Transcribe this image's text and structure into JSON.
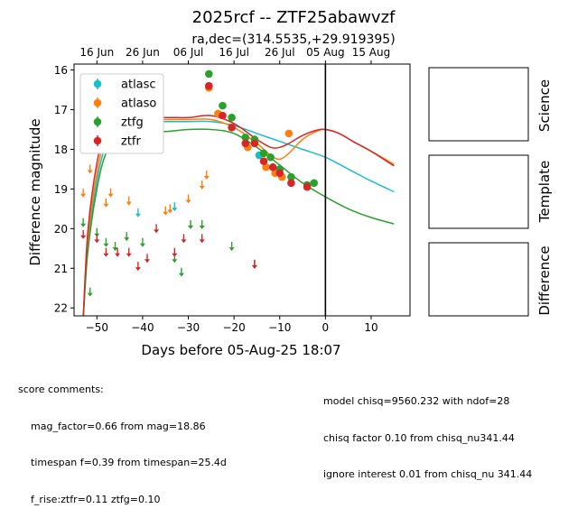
{
  "chart_data": {
    "type": "scatter",
    "title": "2025rcf -- ZTF25abawvzf",
    "subtitle": "ra,dec=(314.5535,+29.919395)",
    "xlabel": "Days before 05-Aug-25 18:07",
    "ylabel": "Difference magnitude",
    "xlim": [
      -55,
      18.5
    ],
    "ylim": [
      22.2,
      15.85
    ],
    "y_inverted": true,
    "x_ticks": [
      "−50",
      "−40",
      "−30",
      "−20",
      "−10",
      "0",
      "10"
    ],
    "x_tick_values": [
      -50,
      -40,
      -30,
      -20,
      -10,
      0,
      10
    ],
    "y_ticks": [
      "16",
      "17",
      "18",
      "19",
      "20",
      "21",
      "22"
    ],
    "y_tick_values": [
      16,
      17,
      18,
      19,
      20,
      21,
      22
    ],
    "top_axis_ticks": [
      "16 Jun",
      "26 Jun",
      "06 Jul",
      "16 Jul",
      "26 Jul",
      "05 Aug",
      "15 Aug"
    ],
    "top_axis_tick_values": [
      -50,
      -40,
      -30,
      -20,
      -10,
      0,
      10
    ],
    "vertical_line_x": 0,
    "legend_position": "upper-left",
    "series": [
      {
        "name": "atlasc",
        "color": "#17becf",
        "detections": [
          [
            -14.5,
            18.15
          ]
        ],
        "upper_limits": [
          [
            -41,
            19.6
          ],
          [
            -33,
            19.45
          ]
        ],
        "model": [
          [
            -53,
            22.2
          ],
          [
            -52,
            20.5
          ],
          [
            -50,
            18.8
          ],
          [
            -48,
            17.9
          ],
          [
            -45,
            17.45
          ],
          [
            -40,
            17.3
          ],
          [
            -35,
            17.3
          ],
          [
            -30,
            17.3
          ],
          [
            -25,
            17.3
          ],
          [
            -20,
            17.4
          ],
          [
            -15,
            17.6
          ],
          [
            -10,
            17.8
          ],
          [
            -5,
            18.0
          ],
          [
            0,
            18.2
          ],
          [
            5,
            18.5
          ],
          [
            10,
            18.8
          ],
          [
            15,
            19.07
          ]
        ]
      },
      {
        "name": "atlaso",
        "color": "#ff7f0e",
        "detections": [
          [
            -25.5,
            16.45
          ],
          [
            -23.5,
            17.1
          ],
          [
            -17,
            17.95
          ],
          [
            -13,
            18.45
          ],
          [
            -11,
            18.6
          ],
          [
            -9.5,
            18.7
          ],
          [
            -8,
            17.6
          ]
        ],
        "upper_limits": [
          [
            -53,
            19.1
          ],
          [
            -51.5,
            18.5
          ],
          [
            -48,
            19.35
          ],
          [
            -47,
            19.1
          ],
          [
            -43,
            19.3
          ],
          [
            -35,
            19.55
          ],
          [
            -34,
            19.5
          ],
          [
            -30,
            19.25
          ],
          [
            -27,
            18.9
          ],
          [
            -26,
            18.65
          ]
        ],
        "model": [
          [
            -53,
            22.3
          ],
          [
            -52,
            20.3
          ],
          [
            -50,
            18.6
          ],
          [
            -48,
            17.7
          ],
          [
            -45,
            17.35
          ],
          [
            -40,
            17.25
          ],
          [
            -35,
            17.25
          ],
          [
            -30,
            17.25
          ],
          [
            -25,
            17.25
          ],
          [
            -20,
            17.45
          ],
          [
            -15,
            17.85
          ],
          [
            -12,
            18.15
          ],
          [
            -10,
            18.25
          ],
          [
            -8,
            18.1
          ],
          [
            -5,
            17.75
          ],
          [
            -2,
            17.55
          ],
          [
            0,
            17.5
          ],
          [
            3,
            17.6
          ],
          [
            6,
            17.8
          ],
          [
            10,
            18.05
          ],
          [
            15,
            18.38
          ]
        ]
      },
      {
        "name": "ztfg",
        "color": "#2ca02c",
        "detections": [
          [
            -25.5,
            16.1
          ],
          [
            -22.5,
            16.9
          ],
          [
            -20.5,
            17.2
          ],
          [
            -17.5,
            17.7
          ],
          [
            -15.5,
            17.75
          ],
          [
            -13.5,
            18.1
          ],
          [
            -12,
            18.2
          ],
          [
            -10,
            18.5
          ],
          [
            -7.5,
            18.7
          ],
          [
            -4,
            18.9
          ],
          [
            -2.5,
            18.85
          ]
        ],
        "upper_limits": [
          [
            -53,
            19.85
          ],
          [
            -51.5,
            21.6
          ],
          [
            -50,
            20.1
          ],
          [
            -48,
            20.35
          ],
          [
            -46,
            20.45
          ],
          [
            -43.5,
            20.2
          ],
          [
            -40,
            20.35
          ],
          [
            -33,
            20.75
          ],
          [
            -31.5,
            21.1
          ],
          [
            -29.5,
            19.9
          ],
          [
            -27,
            19.9
          ],
          [
            -20.5,
            20.45
          ],
          [
            -15.5,
            20.9
          ]
        ],
        "model": [
          [
            -53,
            22.3
          ],
          [
            -52,
            20.6
          ],
          [
            -50,
            19.0
          ],
          [
            -48,
            18.1
          ],
          [
            -45,
            17.65
          ],
          [
            -40,
            17.55
          ],
          [
            -35,
            17.55
          ],
          [
            -30,
            17.5
          ],
          [
            -25,
            17.5
          ],
          [
            -20,
            17.6
          ],
          [
            -15,
            17.95
          ],
          [
            -10,
            18.4
          ],
          [
            -5,
            18.85
          ],
          [
            0,
            19.2
          ],
          [
            5,
            19.5
          ],
          [
            10,
            19.72
          ],
          [
            15,
            19.88
          ]
        ]
      },
      {
        "name": "ztfr",
        "color": "#d62728",
        "detections": [
          [
            -25.5,
            16.4
          ],
          [
            -22.5,
            17.15
          ],
          [
            -20.5,
            17.45
          ],
          [
            -17.5,
            17.85
          ],
          [
            -15.5,
            17.85
          ],
          [
            -13.5,
            18.3
          ],
          [
            -11.5,
            18.45
          ],
          [
            -10,
            18.6
          ],
          [
            -7.5,
            18.85
          ],
          [
            -4,
            18.95
          ]
        ],
        "upper_limits": [
          [
            -53,
            20.15
          ],
          [
            -50,
            20.25
          ],
          [
            -48,
            20.6
          ],
          [
            -45.5,
            20.6
          ],
          [
            -43,
            20.6
          ],
          [
            -41,
            20.95
          ],
          [
            -39,
            20.75
          ],
          [
            -37,
            20.0
          ],
          [
            -33,
            20.6
          ],
          [
            -31,
            20.25
          ],
          [
            -27,
            20.25
          ],
          [
            -15.5,
            20.9
          ]
        ],
        "model": [
          [
            -53,
            22.3
          ],
          [
            -52,
            20.1
          ],
          [
            -50,
            18.35
          ],
          [
            -48,
            17.55
          ],
          [
            -45,
            17.3
          ],
          [
            -40,
            17.25
          ],
          [
            -35,
            17.2
          ],
          [
            -30,
            17.2
          ],
          [
            -25,
            17.15
          ],
          [
            -20,
            17.35
          ],
          [
            -15,
            17.75
          ],
          [
            -12,
            17.95
          ],
          [
            -10,
            17.95
          ],
          [
            -8,
            17.85
          ],
          [
            -5,
            17.65
          ],
          [
            -2,
            17.52
          ],
          [
            0,
            17.5
          ],
          [
            3,
            17.6
          ],
          [
            6,
            17.8
          ],
          [
            10,
            18.05
          ],
          [
            15,
            18.42
          ]
        ]
      }
    ]
  },
  "panels": {
    "science_label": "Science",
    "template_label": "Template",
    "difference_label": "Difference"
  },
  "score_comments": {
    "heading": "score comments:",
    "lines": [
      "mag_factor=0.66 from mag=18.86",
      "timespan f=0.39 from timespan=25.4d",
      "f_rise:ztfr=0.11 ztfg=0.10"
    ]
  },
  "model_comments": {
    "lines": [
      "model chisq=9560.232 with ndof=28",
      "chisq factor 0.10 from chisq_nu341.44",
      "ignore interest 0.01 from chisq_nu 341.44"
    ]
  }
}
